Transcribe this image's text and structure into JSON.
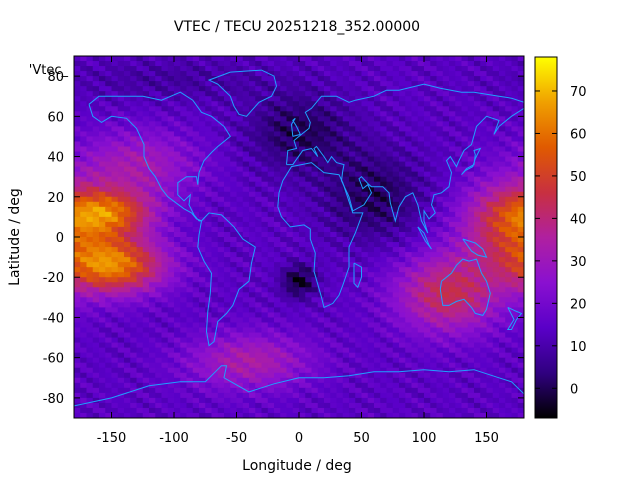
{
  "chart_data": {
    "type": "heatmap",
    "title": "VTEC / TECU 20251218_352.00000",
    "xlabel": "Longitude / deg",
    "ylabel": "Latitude / deg",
    "key_label": "'Vtec_",
    "xlim": [
      -180,
      180
    ],
    "ylim": [
      -90,
      90
    ],
    "x_ticks": [
      -150,
      -100,
      -50,
      0,
      50,
      100,
      150
    ],
    "y_ticks": [
      -80,
      -60,
      -40,
      -20,
      0,
      20,
      40,
      60,
      80
    ],
    "colorbar": {
      "range": [
        -7,
        78
      ],
      "ticks": [
        0,
        10,
        20,
        30,
        40,
        50,
        60,
        70
      ],
      "palette": [
        "#000000",
        "#300080",
        "#5a00c8",
        "#8a10d0",
        "#b020a0",
        "#c83040",
        "#e05a00",
        "#f0a000",
        "#ffff00"
      ]
    },
    "coastline_color": "#1fa0ff",
    "grid_resolution_deg": [
      5,
      2.5
    ]
  }
}
